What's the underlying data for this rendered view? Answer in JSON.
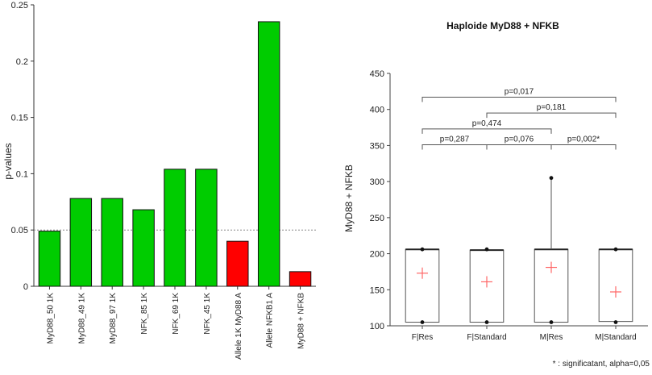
{
  "chart_data": [
    {
      "type": "bar",
      "title": "",
      "xlabel": "",
      "ylabel": "p-values",
      "ylim": [
        0,
        0.25
      ],
      "yticks": [
        "0",
        "0.05",
        "0.1",
        "0.15",
        "0.2",
        "0.25"
      ],
      "threshold": 0.05,
      "categories": [
        "MyD88_50 1K",
        "MyD88_49 1K",
        "MyD88_97 1K",
        "NFK_85 1K",
        "NFK_69 1K",
        "NFK_45 1K",
        "Allele 1K MyD88 A",
        "Allele NFKB1 A",
        "MyD88 + NFKB"
      ],
      "values": [
        0.049,
        0.078,
        0.078,
        0.068,
        0.104,
        0.104,
        0.04,
        0.235,
        0.013
      ],
      "bar_colors": [
        "#00cc00",
        "#00cc00",
        "#00cc00",
        "#00cc00",
        "#00cc00",
        "#00cc00",
        "#ff0000",
        "#00cc00",
        "#ff0000"
      ]
    },
    {
      "type": "box",
      "title": "Haploide MyD88 + NFKB",
      "xlabel": "",
      "ylabel": "MyD88 + NFKB",
      "ylim": [
        100,
        450
      ],
      "yticks": [
        "100",
        "150",
        "200",
        "250",
        "300",
        "350",
        "400",
        "450"
      ],
      "categories": [
        "F|Res",
        "F|Standard",
        "M|Res",
        "M|Standard"
      ],
      "boxes": [
        {
          "min": 105,
          "q1": 105,
          "median": 206,
          "q3": 206,
          "max": 206,
          "mean": 173
        },
        {
          "min": 105,
          "q1": 105,
          "median": 205,
          "q3": 205,
          "max": 206,
          "mean": 161
        },
        {
          "min": 105,
          "q1": 105,
          "median": 206,
          "q3": 206,
          "max": 305,
          "mean": 181
        },
        {
          "min": 105,
          "q1": 106,
          "median": 206,
          "q3": 206,
          "max": 206,
          "mean": 147
        }
      ],
      "comparisons": [
        {
          "from": 0,
          "to": 3,
          "label": "p=0,017",
          "y": 417
        },
        {
          "from": 1,
          "to": 3,
          "label": "p=0,181",
          "y": 395
        },
        {
          "from": 0,
          "to": 2,
          "label": "p=0,474",
          "y": 373
        },
        {
          "from": 0,
          "to": 1,
          "label": "p=0,287",
          "y": 351
        },
        {
          "from": 1,
          "to": 2,
          "label": "p=0,076",
          "y": 351
        },
        {
          "from": 2,
          "to": 3,
          "label": "p=0,002*",
          "y": 351
        }
      ],
      "footnote": "* : significatant, alpha=0,05",
      "colors": {
        "box_border": "#555555",
        "mean_marker": "#ff6666",
        "bracket": "#555555"
      }
    }
  ]
}
